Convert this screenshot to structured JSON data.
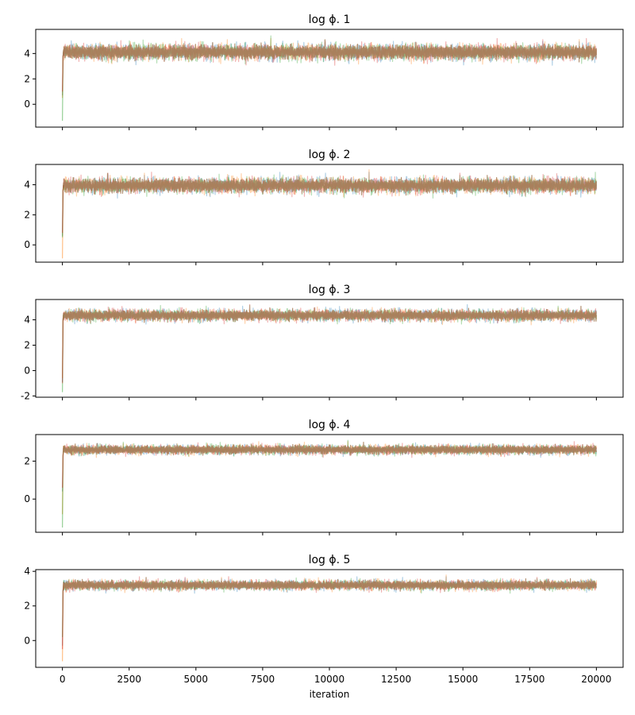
{
  "chart_data": [
    {
      "type": "line",
      "title": "log ϕ. 1",
      "xlabel": "",
      "xlim": [
        -1000,
        21000
      ],
      "ylim": [
        -1.8,
        5.9
      ],
      "yticks": [
        0,
        2,
        4
      ],
      "xticks": [
        0,
        2500,
        5000,
        7500,
        10000,
        12500,
        15000,
        17500,
        20000
      ],
      "show_xtick_labels": false,
      "start_values": [
        0.7,
        0.5,
        -1.3,
        1.0
      ],
      "steady": {
        "mean": 4.1,
        "spread": 0.55,
        "min": 2.9,
        "max": 5.4
      },
      "iterations": 20000,
      "series_colors": [
        "#1f77b4",
        "#ff7f0e",
        "#2ca02c",
        "#d62728"
      ]
    },
    {
      "type": "line",
      "title": "log ϕ. 2",
      "xlabel": "",
      "xlim": [
        -1000,
        21000
      ],
      "ylim": [
        -1.15,
        5.35
      ],
      "yticks": [
        0,
        2,
        4
      ],
      "xticks": [
        0,
        2500,
        5000,
        7500,
        10000,
        12500,
        15000,
        17500,
        20000
      ],
      "show_xtick_labels": false,
      "start_values": [
        0.6,
        -0.9,
        0.5,
        0.8
      ],
      "steady": {
        "mean": 3.95,
        "spread": 0.45,
        "min": 3.0,
        "max": 5.0
      },
      "iterations": 20000,
      "series_colors": [
        "#1f77b4",
        "#ff7f0e",
        "#2ca02c",
        "#d62728"
      ]
    },
    {
      "type": "line",
      "title": "log ϕ. 3",
      "xlabel": "",
      "xlim": [
        -1000,
        21000
      ],
      "ylim": [
        -2.1,
        5.6
      ],
      "yticks": [
        -2,
        0,
        2,
        4
      ],
      "xticks": [
        0,
        2500,
        5000,
        7500,
        10000,
        12500,
        15000,
        17500,
        20000
      ],
      "show_xtick_labels": false,
      "start_values": [
        -0.9,
        -0.6,
        -1.7,
        -1.0
      ],
      "steady": {
        "mean": 4.35,
        "spread": 0.4,
        "min": 3.3,
        "max": 5.2
      },
      "iterations": 20000,
      "series_colors": [
        "#1f77b4",
        "#ff7f0e",
        "#2ca02c",
        "#d62728"
      ]
    },
    {
      "type": "line",
      "title": "log ϕ. 4",
      "xlabel": "",
      "xlim": [
        -1000,
        21000
      ],
      "ylim": [
        -1.75,
        3.4
      ],
      "yticks": [
        0,
        2
      ],
      "xticks": [
        0,
        2500,
        5000,
        7500,
        10000,
        12500,
        15000,
        17500,
        20000
      ],
      "show_xtick_labels": false,
      "start_values": [
        0.4,
        -0.8,
        -1.5,
        0.6
      ],
      "steady": {
        "mean": 2.6,
        "spread": 0.22,
        "min": 2.1,
        "max": 3.1
      },
      "iterations": 20000,
      "series_colors": [
        "#1f77b4",
        "#ff7f0e",
        "#2ca02c",
        "#d62728"
      ]
    },
    {
      "type": "line",
      "title": "log ϕ. 5",
      "xlabel": "iteration",
      "xlim": [
        -1000,
        21000
      ],
      "ylim": [
        -1.55,
        4.1
      ],
      "yticks": [
        0,
        2,
        4
      ],
      "xticks": [
        0,
        2500,
        5000,
        7500,
        10000,
        12500,
        15000,
        17500,
        20000
      ],
      "show_xtick_labels": true,
      "start_values": [
        -0.3,
        -1.2,
        0.2,
        -0.5
      ],
      "steady": {
        "mean": 3.2,
        "spread": 0.25,
        "min": 2.7,
        "max": 3.8
      },
      "iterations": 20000,
      "series_colors": [
        "#1f77b4",
        "#ff7f0e",
        "#2ca02c",
        "#d62728"
      ]
    }
  ],
  "trace_color": "#a8805d"
}
